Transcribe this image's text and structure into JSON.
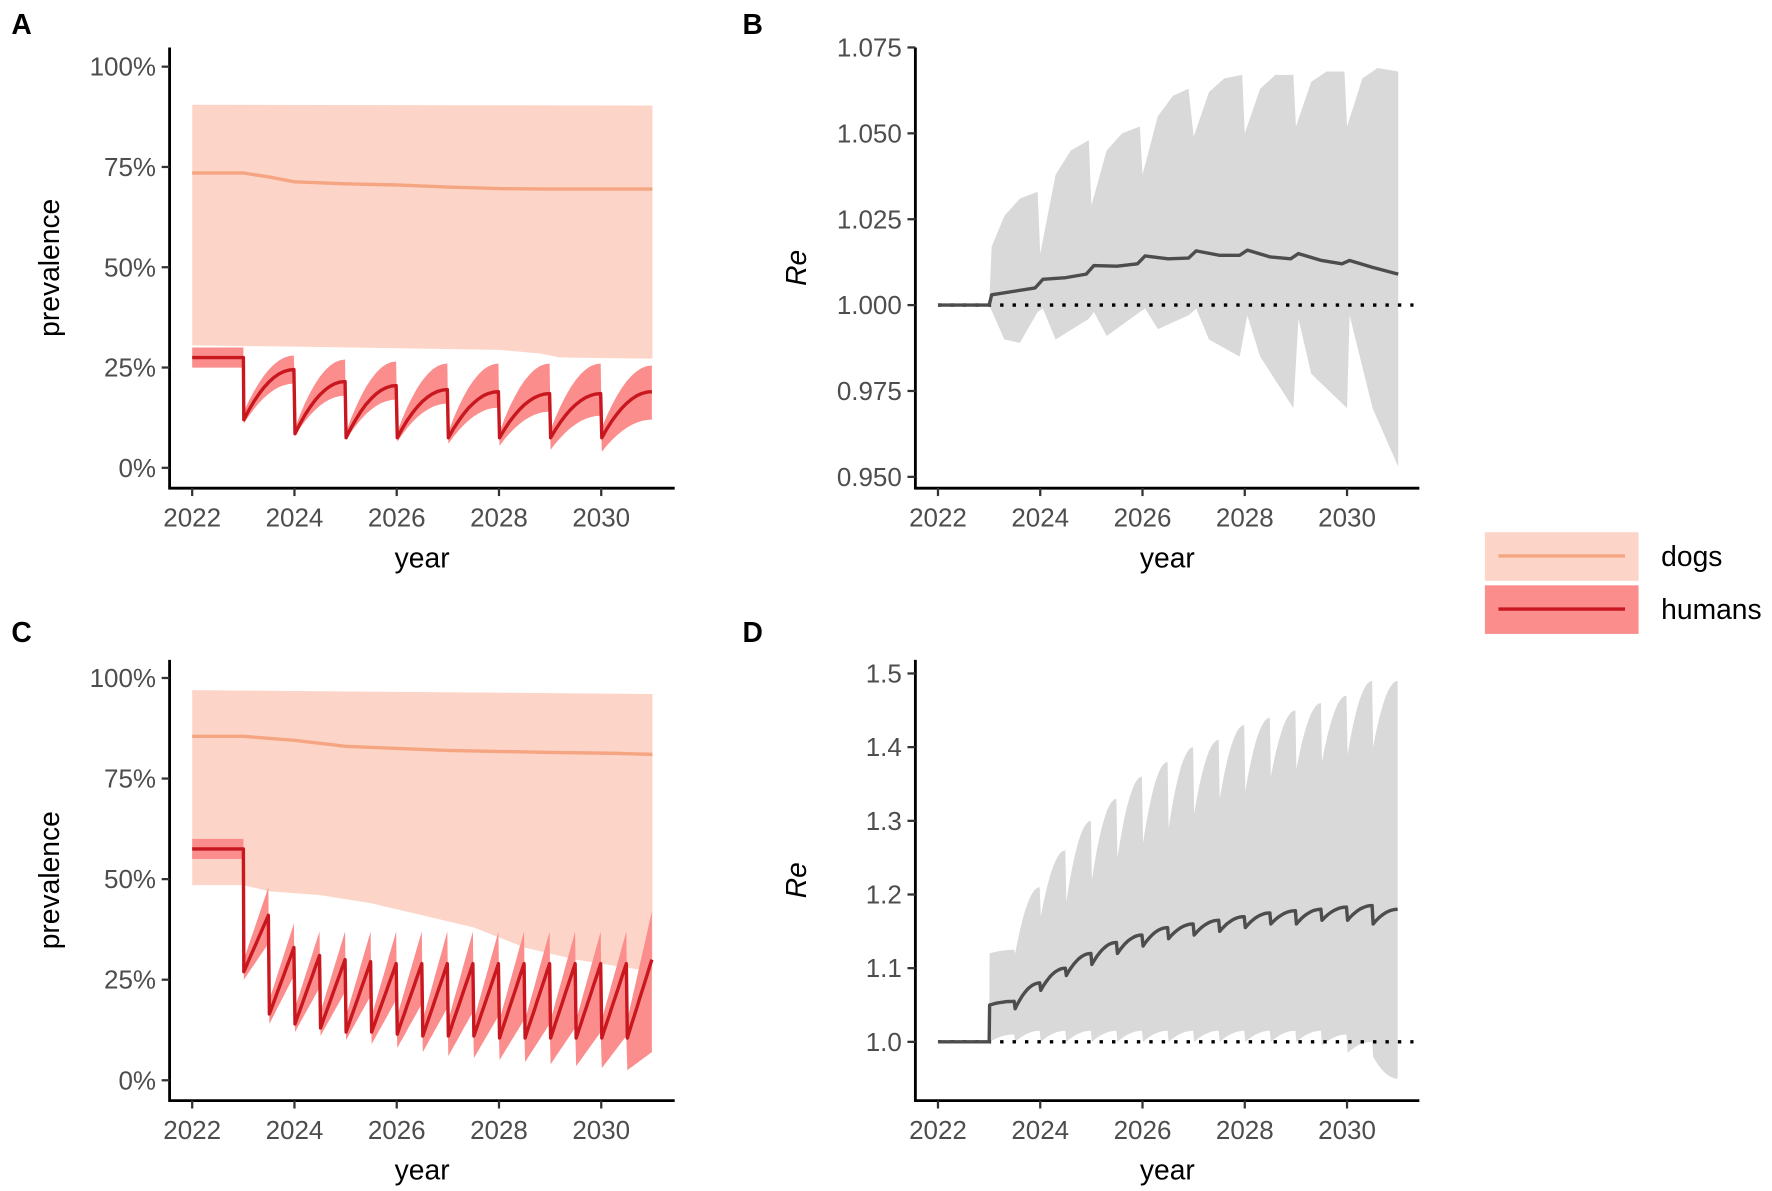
{
  "panel_labels": [
    "A",
    "B",
    "C",
    "D"
  ],
  "legend": {
    "items": [
      {
        "label": "dogs",
        "line": "#f5a582",
        "fill": "#fdd5c8"
      },
      {
        "label": "humans",
        "line": "#c8171e",
        "fill": "#fb8d8d"
      }
    ]
  },
  "colors": {
    "dogs_line": "#f5a582",
    "dogs_fill": "#fdd5c8",
    "humans_line": "#c8171e",
    "humans_fill": "#fb8d8d",
    "re_line": "#4d4d4d",
    "re_fill": "#d9d9d9"
  },
  "chart_data": [
    {
      "id": "A",
      "type": "line",
      "xlabel": "year",
      "ylabel": "prevalence",
      "xlim": [
        2022,
        2031
      ],
      "ylim": [
        0,
        100
      ],
      "xticks": [
        "2022",
        "2024",
        "2026",
        "2028",
        "2030"
      ],
      "yticks": [
        "0%",
        "25%",
        "50%",
        "75%",
        "100%"
      ],
      "dogs": {
        "median": [
          [
            2022,
            73.5
          ],
          [
            2023,
            73.5
          ],
          [
            2023.5,
            72.5
          ],
          [
            2024,
            71.3
          ],
          [
            2025,
            70.8
          ],
          [
            2026,
            70.5
          ],
          [
            2027,
            70
          ],
          [
            2028,
            69.6
          ],
          [
            2029,
            69.5
          ],
          [
            2031,
            69.5
          ]
        ],
        "upper": [
          [
            2022,
            90.5
          ],
          [
            2031,
            90.3
          ]
        ],
        "lower": [
          [
            2022,
            30.5
          ],
          [
            2024,
            30.2
          ],
          [
            2026,
            29.8
          ],
          [
            2028,
            29.4
          ],
          [
            2028.8,
            28.5
          ],
          [
            2029.2,
            27.5
          ],
          [
            2031,
            27.2
          ]
        ]
      },
      "humans": {
        "flat": [
          [
            2022,
            25,
            27.5,
            30
          ],
          [
            2023,
            25,
            27.5,
            30
          ]
        ],
        "shape": "concave",
        "cycles": [
          [
            2023,
            [
              11,
              12,
              14
            ],
            [
              21,
              24.5,
              28
            ]
          ],
          [
            2024,
            [
              8,
              8.5,
              10
            ],
            [
              18,
              21.5,
              27
            ]
          ],
          [
            2025,
            [
              7,
              7.5,
              9
            ],
            [
              17,
              20.5,
              26.5
            ]
          ],
          [
            2026,
            [
              6.5,
              7.5,
              9
            ],
            [
              16,
              19.5,
              26
            ]
          ],
          [
            2027,
            [
              6,
              7.5,
              9
            ],
            [
              15,
              19,
              26
            ]
          ],
          [
            2028,
            [
              5.5,
              7.5,
              9
            ],
            [
              14,
              18.5,
              26
            ]
          ],
          [
            2029,
            [
              4.5,
              7.5,
              9.5
            ],
            [
              13,
              18.5,
              26
            ]
          ],
          [
            2030,
            [
              4,
              7.5,
              10
            ],
            [
              12,
              19,
              25.5
            ]
          ]
        ],
        "period": 1
      }
    },
    {
      "id": "B",
      "type": "line",
      "xlabel": "year",
      "ylabel": "Re",
      "xlim": [
        2022,
        2031
      ],
      "ylim": [
        0.95,
        1.075
      ],
      "hline": 1.0,
      "xticks": [
        "2022",
        "2024",
        "2026",
        "2028",
        "2030"
      ],
      "yticks": [
        "0.950",
        "0.975",
        "1.000",
        "1.025",
        "1.050",
        "1.075"
      ],
      "median": [
        [
          2022,
          1
        ],
        [
          2023,
          1
        ],
        [
          2023.05,
          1.003
        ],
        [
          2023.9,
          1.005
        ],
        [
          2024.05,
          1.0075
        ],
        [
          2024.5,
          1.008
        ],
        [
          2024.9,
          1.009
        ],
        [
          2025.05,
          1.0115
        ],
        [
          2025.5,
          1.0113
        ],
        [
          2025.9,
          1.012
        ],
        [
          2026.05,
          1.0143
        ],
        [
          2026.5,
          1.0135
        ],
        [
          2026.9,
          1.0137
        ],
        [
          2027.05,
          1.0158
        ],
        [
          2027.5,
          1.0145
        ],
        [
          2027.9,
          1.0145
        ],
        [
          2028.05,
          1.016
        ],
        [
          2028.5,
          1.014
        ],
        [
          2028.9,
          1.0135
        ],
        [
          2029.05,
          1.015
        ],
        [
          2029.5,
          1.013
        ],
        [
          2029.9,
          1.012
        ],
        [
          2030.05,
          1.013
        ],
        [
          2030.5,
          1.011
        ],
        [
          2031,
          1.009
        ]
      ],
      "upper": [
        [
          2022,
          1
        ],
        [
          2023,
          1
        ],
        [
          2023.05,
          1.017
        ],
        [
          2023.3,
          1.026
        ],
        [
          2023.6,
          1.031
        ],
        [
          2023.95,
          1.033
        ],
        [
          2024,
          1.015
        ],
        [
          2024.3,
          1.038
        ],
        [
          2024.6,
          1.045
        ],
        [
          2024.95,
          1.048
        ],
        [
          2025,
          1.029
        ],
        [
          2025.3,
          1.045
        ],
        [
          2025.6,
          1.05
        ],
        [
          2025.95,
          1.052
        ],
        [
          2026,
          1.038
        ],
        [
          2026.3,
          1.055
        ],
        [
          2026.6,
          1.061
        ],
        [
          2026.9,
          1.063
        ],
        [
          2027,
          1.049
        ],
        [
          2027.3,
          1.062
        ],
        [
          2027.6,
          1.066
        ],
        [
          2027.95,
          1.067
        ],
        [
          2028,
          1.05
        ],
        [
          2028.3,
          1.063
        ],
        [
          2028.6,
          1.067
        ],
        [
          2028.95,
          1.067
        ],
        [
          2029,
          1.052
        ],
        [
          2029.3,
          1.065
        ],
        [
          2029.6,
          1.068
        ],
        [
          2029.95,
          1.068
        ],
        [
          2030,
          1.052
        ],
        [
          2030.3,
          1.066
        ],
        [
          2030.6,
          1.069
        ],
        [
          2031,
          1.068
        ]
      ],
      "lower": [
        [
          2022,
          1
        ],
        [
          2023,
          1
        ],
        [
          2023.3,
          0.99
        ],
        [
          2023.6,
          0.989
        ],
        [
          2023.95,
          0.998
        ],
        [
          2024.05,
          0.999
        ],
        [
          2024.3,
          0.99
        ],
        [
          2024.95,
          0.996
        ],
        [
          2025.05,
          0.998
        ],
        [
          2025.3,
          0.991
        ],
        [
          2025.95,
          0.998
        ],
        [
          2026.05,
          0.999
        ],
        [
          2026.3,
          0.993
        ],
        [
          2026.9,
          0.997
        ],
        [
          2027.05,
          0.999
        ],
        [
          2027.3,
          0.99
        ],
        [
          2027.9,
          0.985
        ],
        [
          2028.05,
          0.997
        ],
        [
          2028.3,
          0.985
        ],
        [
          2028.95,
          0.97
        ],
        [
          2029.05,
          0.996
        ],
        [
          2029.3,
          0.98
        ],
        [
          2030,
          0.97
        ],
        [
          2030.05,
          0.997
        ],
        [
          2030.5,
          0.97
        ],
        [
          2031,
          0.953
        ]
      ]
    },
    {
      "id": "C",
      "type": "line",
      "xlabel": "year",
      "ylabel": "prevalence",
      "xlim": [
        2022,
        2031
      ],
      "ylim": [
        0,
        100
      ],
      "xticks": [
        "2022",
        "2024",
        "2026",
        "2028",
        "2030"
      ],
      "yticks": [
        "0%",
        "25%",
        "50%",
        "75%",
        "100%"
      ],
      "dogs": {
        "median": [
          [
            2022,
            85.5
          ],
          [
            2023,
            85.5
          ],
          [
            2024,
            84.5
          ],
          [
            2025,
            83
          ],
          [
            2027,
            82
          ],
          [
            2029,
            81.5
          ],
          [
            2030.2,
            81.3
          ],
          [
            2031,
            81
          ]
        ],
        "upper": [
          [
            2022,
            97
          ],
          [
            2031,
            96
          ]
        ],
        "lower": [
          [
            2022,
            48.5
          ],
          [
            2023,
            48.5
          ],
          [
            2023.5,
            47
          ],
          [
            2024.5,
            46
          ],
          [
            2025.5,
            44
          ],
          [
            2026.5,
            41
          ],
          [
            2027.5,
            38
          ],
          [
            2028.5,
            33
          ],
          [
            2029.5,
            30
          ],
          [
            2030.5,
            28
          ],
          [
            2031,
            27
          ]
        ]
      },
      "humans": {
        "flat": [
          [
            2022,
            55,
            57.5,
            60
          ],
          [
            2023,
            55,
            57.5,
            60
          ]
        ],
        "shape": "linear",
        "cycles": [
          [
            2023,
            [
              25,
              27,
              30
            ],
            [
              34,
              41,
              48
            ]
          ],
          [
            2023.5,
            [
              14,
              16.5,
              20
            ],
            [
              26,
              33,
              39
            ]
          ],
          [
            2024,
            [
              12,
              14,
              18
            ],
            [
              23,
              31,
              37
            ]
          ],
          [
            2024.5,
            [
              11,
              13,
              17
            ],
            [
              22,
              30,
              37
            ]
          ],
          [
            2025,
            [
              10,
              12,
              16
            ],
            [
              21,
              29.5,
              37
            ]
          ],
          [
            2025.5,
            [
              9,
              12,
              16
            ],
            [
              20,
              29,
              37
            ]
          ],
          [
            2026,
            [
              8,
              11.5,
              16
            ],
            [
              19,
              29,
              37
            ]
          ],
          [
            2026.5,
            [
              7,
              11,
              15
            ],
            [
              18,
              29,
              37
            ]
          ],
          [
            2027,
            [
              6,
              11,
              15
            ],
            [
              17,
              29,
              37
            ]
          ],
          [
            2027.5,
            [
              5.5,
              11,
              15
            ],
            [
              16,
              29,
              37
            ]
          ],
          [
            2028,
            [
              5,
              10.5,
              15
            ],
            [
              15,
              29,
              37
            ]
          ],
          [
            2028.5,
            [
              4.5,
              10.5,
              15
            ],
            [
              14,
              29,
              37
            ]
          ],
          [
            2029,
            [
              4,
              10.5,
              15
            ],
            [
              13,
              29,
              37
            ]
          ],
          [
            2029.5,
            [
              3.5,
              10.5,
              15
            ],
            [
              12,
              29,
              37
            ]
          ],
          [
            2030,
            [
              3,
              10.5,
              15
            ],
            [
              11,
              29,
              37
            ]
          ],
          [
            2030.5,
            [
              2.5,
              10.5,
              15
            ],
            [
              7,
              30,
              42
            ]
          ]
        ],
        "period": 0.5
      }
    },
    {
      "id": "D",
      "type": "line",
      "xlabel": "year",
      "ylabel": "Re",
      "xlim": [
        2022,
        2031
      ],
      "ylim": [
        0.95,
        1.5
      ],
      "hline": 1.0,
      "xticks": [
        "2022",
        "2024",
        "2026",
        "2028",
        "2030"
      ],
      "yticks": [
        "1.0",
        "1.1",
        "1.2",
        "1.3",
        "1.4",
        "1.5"
      ],
      "flat": [
        [
          2022,
          1,
          1,
          1
        ],
        [
          2023,
          1,
          1,
          1
        ]
      ],
      "shape": "concave",
      "period": 0.5,
      "cycles": [
        [
          2023,
          [
            1.0,
            1.05,
            1.12
          ],
          [
            1.01,
            1.055,
            1.125
          ]
        ],
        [
          2023.5,
          [
            1.0,
            1.045,
            1.12
          ],
          [
            1.015,
            1.08,
            1.21
          ]
        ],
        [
          2024,
          [
            1.0,
            1.07,
            1.17
          ],
          [
            1.015,
            1.1,
            1.26
          ]
        ],
        [
          2024.5,
          [
            1.0,
            1.09,
            1.19
          ],
          [
            1.015,
            1.12,
            1.3
          ]
        ],
        [
          2025,
          [
            1.0,
            1.105,
            1.22
          ],
          [
            1.015,
            1.135,
            1.33
          ]
        ],
        [
          2025.5,
          [
            1.0,
            1.12,
            1.25
          ],
          [
            1.015,
            1.145,
            1.36
          ]
        ],
        [
          2026,
          [
            1.0,
            1.13,
            1.27
          ],
          [
            1.015,
            1.155,
            1.38
          ]
        ],
        [
          2026.5,
          [
            1.0,
            1.14,
            1.29
          ],
          [
            1.015,
            1.16,
            1.4
          ]
        ],
        [
          2027,
          [
            1.0,
            1.145,
            1.31
          ],
          [
            1.015,
            1.165,
            1.41
          ]
        ],
        [
          2027.5,
          [
            1.0,
            1.15,
            1.33
          ],
          [
            1.015,
            1.17,
            1.43
          ]
        ],
        [
          2028,
          [
            1.0,
            1.155,
            1.34
          ],
          [
            1.015,
            1.175,
            1.44
          ]
        ],
        [
          2028.5,
          [
            1.0,
            1.16,
            1.36
          ],
          [
            1.015,
            1.178,
            1.45
          ]
        ],
        [
          2029,
          [
            1.0,
            1.16,
            1.37
          ],
          [
            1.015,
            1.18,
            1.46
          ]
        ],
        [
          2029.5,
          [
            0.995,
            1.165,
            1.38
          ],
          [
            1.01,
            1.183,
            1.47
          ]
        ],
        [
          2030,
          [
            0.985,
            1.165,
            1.39
          ],
          [
            1.0,
            1.185,
            1.49
          ]
        ],
        [
          2030.5,
          [
            0.98,
            1.16,
            1.4
          ],
          [
            0.95,
            1.18,
            1.49
          ]
        ]
      ]
    }
  ]
}
